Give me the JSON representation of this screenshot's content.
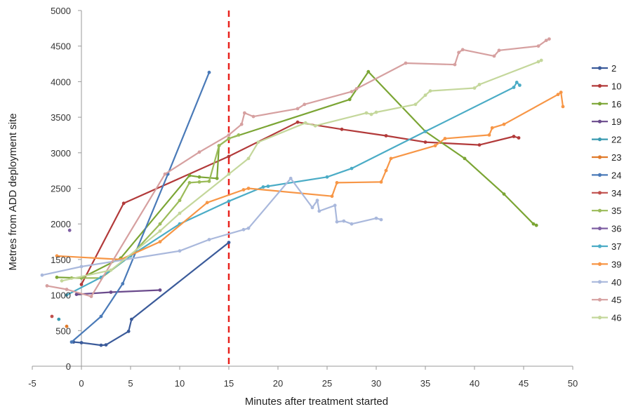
{
  "chart_data": {
    "type": "line",
    "xlabel": "Minutes after treatment started",
    "ylabel": "Metres from ADD deployment site",
    "xlim": [
      -5,
      50
    ],
    "ylim": [
      0,
      5000
    ],
    "x_ticks": [
      -5,
      0,
      5,
      10,
      15,
      20,
      25,
      30,
      35,
      40,
      45,
      50
    ],
    "y_ticks": [
      0,
      500,
      1000,
      1500,
      2000,
      2500,
      3000,
      3500,
      4000,
      4500,
      5000
    ],
    "legend_position": "right",
    "reference_line": {
      "x": 15,
      "color": "#e8231e",
      "style": "dashed"
    },
    "series": [
      {
        "name": "2",
        "color": "#3b5b9a",
        "points": [
          [
            -0.8,
            340
          ],
          [
            0,
            330
          ],
          [
            2,
            295
          ],
          [
            2.5,
            300
          ],
          [
            4.8,
            490
          ],
          [
            5.1,
            660
          ],
          [
            15,
            1740
          ]
        ]
      },
      {
        "name": "10",
        "color": "#b23a3a",
        "points": [
          [
            0,
            1150
          ],
          [
            4.3,
            2290
          ],
          [
            15,
            2950
          ],
          [
            22,
            3430
          ],
          [
            26.5,
            3330
          ],
          [
            31,
            3240
          ],
          [
            35,
            3150
          ],
          [
            40.5,
            3110
          ],
          [
            44,
            3230
          ],
          [
            44.5,
            3210
          ]
        ]
      },
      {
        "name": "16",
        "color": "#7ba534",
        "points": [
          [
            -2.5,
            1250
          ],
          [
            0,
            1240
          ],
          [
            4,
            1520
          ],
          [
            11,
            2680
          ],
          [
            12,
            2660
          ],
          [
            13.8,
            2640
          ],
          [
            14,
            3100
          ],
          [
            15,
            3200
          ],
          [
            27.3,
            3750
          ],
          [
            29.2,
            4140
          ],
          [
            35,
            3300
          ],
          [
            39,
            2920
          ],
          [
            43,
            2420
          ],
          [
            46,
            2000
          ],
          [
            46.3,
            1980
          ]
        ]
      },
      {
        "name": "19",
        "color": "#6a4a8c",
        "points": [
          [
            -0.5,
            1010
          ],
          [
            3,
            1040
          ],
          [
            8,
            1070
          ]
        ]
      },
      {
        "name": "22",
        "color": "#3a9ab0",
        "points": [
          [
            -2.3,
            660
          ]
        ]
      },
      {
        "name": "23",
        "color": "#e07b2c",
        "points": [
          [
            -1.5,
            560
          ]
        ]
      },
      {
        "name": "24",
        "color": "#4a7ab8",
        "points": [
          [
            -1,
            340
          ],
          [
            2,
            700
          ],
          [
            4.2,
            1160
          ],
          [
            8.8,
            2700
          ],
          [
            13,
            4130
          ]
        ]
      },
      {
        "name": "34",
        "color": "#c0504d",
        "points": [
          [
            -3,
            700
          ]
        ]
      },
      {
        "name": "35",
        "color": "#9bbb59",
        "points": [
          [
            -1,
            1240
          ],
          [
            2,
            1240
          ],
          [
            5,
            1550
          ],
          [
            8,
            2000
          ],
          [
            10,
            2330
          ],
          [
            11,
            2580
          ],
          [
            12,
            2590
          ],
          [
            13,
            2600
          ],
          [
            14,
            3100
          ],
          [
            15,
            3200
          ],
          [
            16,
            3250
          ]
        ]
      },
      {
        "name": "36",
        "color": "#7f5fa3",
        "points": [
          [
            -1.2,
            1910
          ]
        ]
      },
      {
        "name": "37",
        "color": "#4bacc6",
        "points": [
          [
            -1.5,
            1000
          ],
          [
            2,
            1250
          ],
          [
            5,
            1550
          ],
          [
            10,
            2000
          ],
          [
            15,
            2320
          ],
          [
            18.5,
            2520
          ],
          [
            19,
            2530
          ],
          [
            25,
            2660
          ],
          [
            27.5,
            2780
          ],
          [
            35,
            3300
          ],
          [
            44,
            3920
          ],
          [
            44.3,
            3990
          ],
          [
            44.6,
            3950
          ]
        ]
      },
      {
        "name": "39",
        "color": "#f79646",
        "points": [
          [
            -2.5,
            1550
          ],
          [
            4,
            1500
          ],
          [
            8,
            1750
          ],
          [
            12.8,
            2300
          ],
          [
            16.5,
            2480
          ],
          [
            17,
            2500
          ],
          [
            25.5,
            2390
          ],
          [
            26,
            2580
          ],
          [
            30.5,
            2590
          ],
          [
            31,
            2750
          ],
          [
            31.5,
            2920
          ],
          [
            36,
            3100
          ],
          [
            37,
            3200
          ],
          [
            41.5,
            3250
          ],
          [
            41.8,
            3350
          ],
          [
            43,
            3400
          ],
          [
            48.5,
            3820
          ],
          [
            48.8,
            3850
          ],
          [
            49,
            3650
          ]
        ]
      },
      {
        "name": "40",
        "color": "#a9b8dc",
        "points": [
          [
            -4,
            1280
          ],
          [
            0,
            1400
          ],
          [
            10,
            1620
          ],
          [
            13,
            1780
          ],
          [
            16.5,
            1920
          ],
          [
            17,
            1940
          ],
          [
            21.3,
            2640
          ],
          [
            23.5,
            2230
          ],
          [
            24,
            2330
          ],
          [
            24.2,
            2180
          ],
          [
            25.8,
            2260
          ],
          [
            26,
            2030
          ],
          [
            26.7,
            2040
          ],
          [
            27.5,
            2000
          ],
          [
            30,
            2080
          ],
          [
            30.5,
            2060
          ]
        ]
      },
      {
        "name": "45",
        "color": "#d6a0a0",
        "points": [
          [
            -3.5,
            1130
          ],
          [
            -1.5,
            1080
          ],
          [
            1,
            980
          ],
          [
            8.5,
            2700
          ],
          [
            12,
            3010
          ],
          [
            15,
            3250
          ],
          [
            16.3,
            3400
          ],
          [
            16.6,
            3560
          ],
          [
            17.5,
            3510
          ],
          [
            22,
            3620
          ],
          [
            22.7,
            3680
          ],
          [
            27.5,
            3860
          ],
          [
            28,
            3900
          ],
          [
            33,
            4260
          ],
          [
            38,
            4240
          ],
          [
            38.4,
            4410
          ],
          [
            38.8,
            4450
          ],
          [
            42,
            4360
          ],
          [
            42.5,
            4440
          ],
          [
            46.5,
            4500
          ],
          [
            47.3,
            4580
          ],
          [
            47.6,
            4600
          ]
        ]
      },
      {
        "name": "46",
        "color": "#c4d79b",
        "points": [
          [
            -2,
            1200
          ],
          [
            3,
            1350
          ],
          [
            8,
            1900
          ],
          [
            10,
            2150
          ],
          [
            15,
            2700
          ],
          [
            17,
            2920
          ],
          [
            18,
            3150
          ],
          [
            22.8,
            3420
          ],
          [
            23.8,
            3380
          ],
          [
            29,
            3560
          ],
          [
            29.5,
            3540
          ],
          [
            30,
            3570
          ],
          [
            34,
            3680
          ],
          [
            35,
            3810
          ],
          [
            35.5,
            3870
          ],
          [
            40,
            3910
          ],
          [
            40.5,
            3960
          ],
          [
            46.5,
            4280
          ],
          [
            46.8,
            4300
          ]
        ]
      }
    ]
  }
}
